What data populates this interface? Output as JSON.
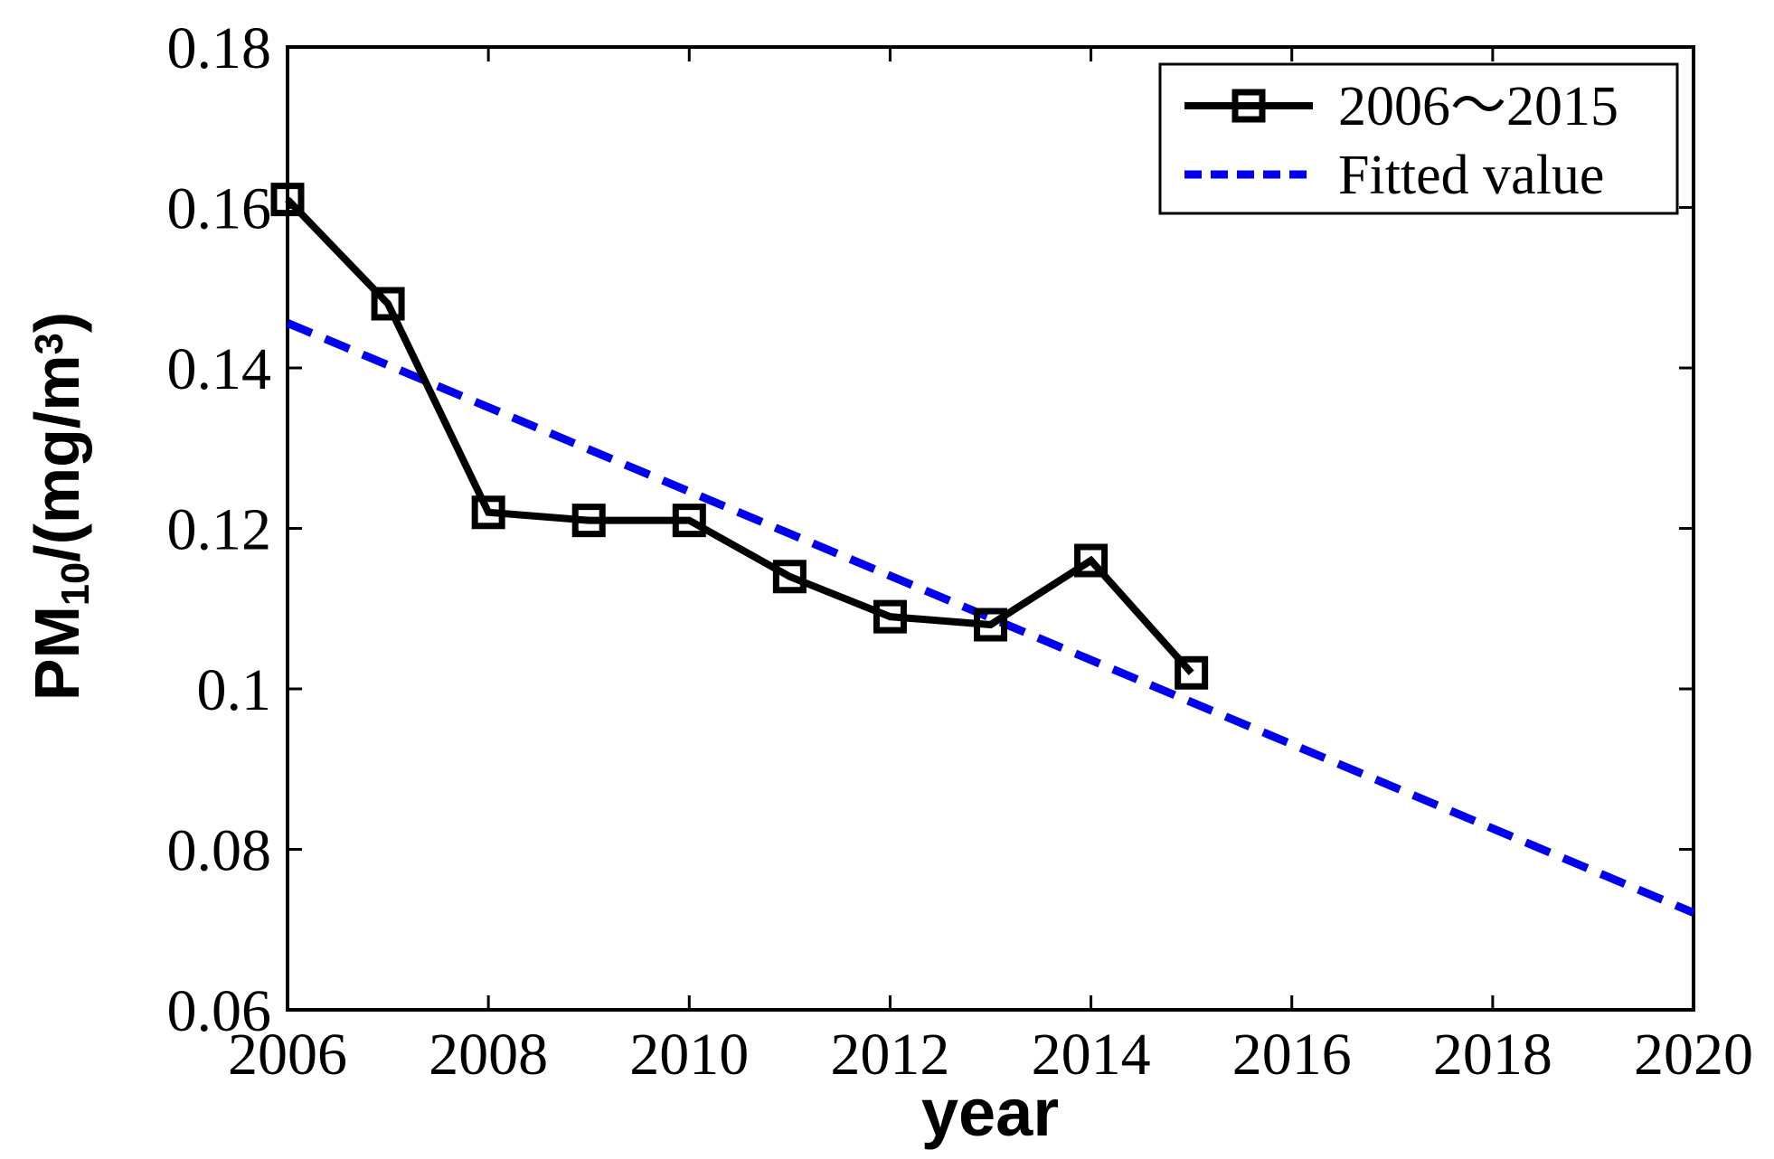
{
  "chart_data": {
    "type": "line",
    "title": "",
    "xlabel": "year",
    "ylabel": "PM10/(mg/m3)",
    "ylabel_parts": {
      "prefix": "PM",
      "sub": "10",
      "mid": "/(mg/m",
      "sup": "3",
      "close": ")"
    },
    "xlim": [
      2006,
      2020
    ],
    "ylim": [
      0.06,
      0.18
    ],
    "grid": false,
    "box": true,
    "tick_direction": "in",
    "legend_position": "top-right",
    "x_tick_values": [
      2006,
      2008,
      2010,
      2012,
      2014,
      2016,
      2018,
      2020
    ],
    "x_tick_labels": [
      "2006",
      "2008",
      "2010",
      "2012",
      "2014",
      "2016",
      "2018",
      "2020"
    ],
    "y_tick_values": [
      0.06,
      0.08,
      0.1,
      0.12,
      0.14,
      0.16,
      0.18
    ],
    "y_tick_labels": [
      "0.06",
      "0.08",
      "0.1",
      "0.12",
      "0.14",
      "0.16",
      "0.18"
    ],
    "series": [
      {
        "name": "2006～2015",
        "type": "line",
        "marker": "open-square",
        "line_style": "solid",
        "color": "#000000",
        "x": [
          2006,
          2007,
          2008,
          2009,
          2010,
          2011,
          2012,
          2013,
          2014,
          2015
        ],
        "y": [
          0.161,
          0.148,
          0.122,
          0.121,
          0.121,
          0.114,
          0.109,
          0.108,
          0.116,
          0.102
        ]
      },
      {
        "name": "Fitted value",
        "type": "line",
        "marker": "none",
        "line_style": "dashed",
        "color": "#0000ee",
        "x": [
          2006,
          2020
        ],
        "y": [
          0.1456,
          0.0721
        ]
      }
    ]
  }
}
